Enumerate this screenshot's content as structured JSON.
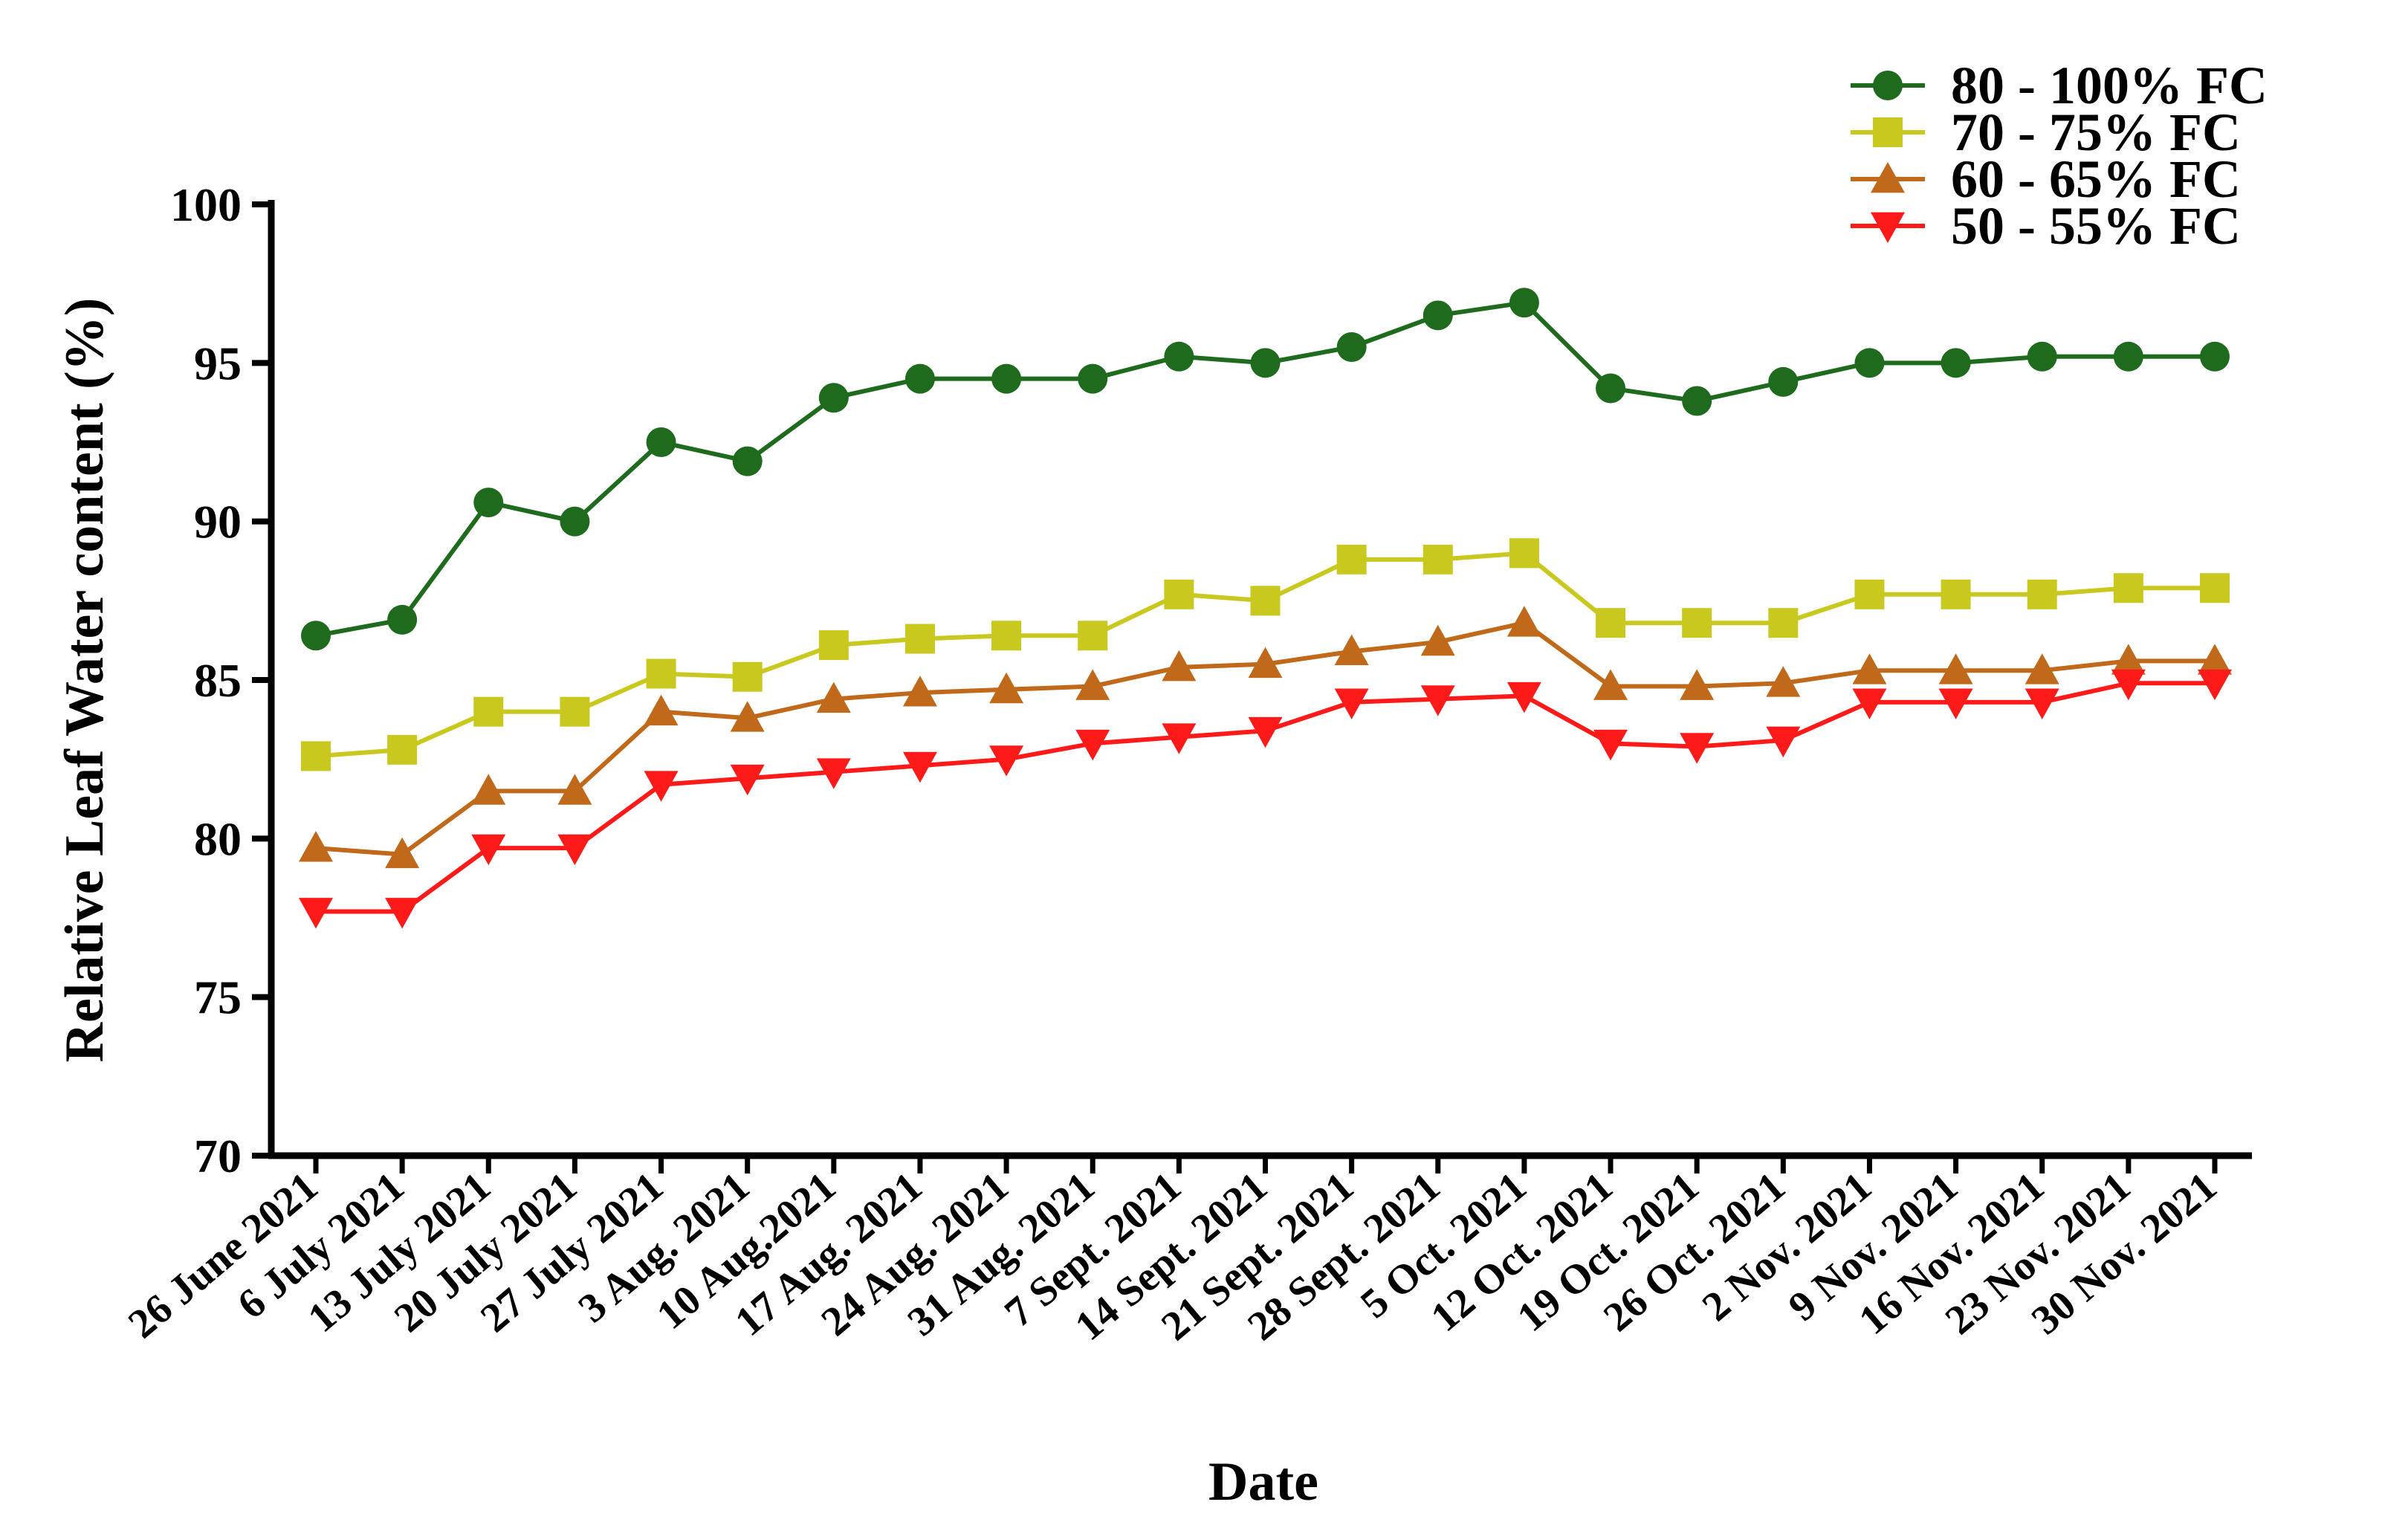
{
  "chart_data": {
    "type": "line",
    "title": "",
    "xlabel": "Date",
    "ylabel": "Relative Leaf Water content (%)",
    "ylim": [
      70,
      100
    ],
    "yticks": [
      70,
      75,
      80,
      85,
      90,
      95,
      100
    ],
    "grid": false,
    "legend_position": "top-right",
    "categories": [
      "26 June 2021",
      "6 July 2021",
      "13 July 2021",
      "20 July 2021",
      "27 July 2021",
      "3 Aug. 2021",
      "10 Aug.2021",
      "17 Aug. 2021",
      "24 Aug. 2021",
      "31 Aug. 2021",
      "7 Sept. 2021",
      "14 Sept. 2021",
      "21 Sept. 2021",
      "28 Sept. 2021",
      "5 Oct. 2021",
      "12 Oct. 2021",
      "19 Oct. 2021",
      "26 Oct. 2021",
      "2 Nov. 2021",
      "9 Nov. 2021",
      "16 Nov. 2021",
      "23 Nov. 2021",
      "30 Nov. 2021"
    ],
    "series": [
      {
        "name": "80 - 100% FC",
        "color": "#1e6b1e",
        "marker": "circle",
        "values": [
          86.4,
          86.9,
          90.6,
          90.0,
          92.5,
          91.9,
          93.9,
          94.5,
          94.5,
          94.5,
          95.2,
          95.0,
          95.5,
          96.5,
          96.9,
          94.2,
          93.8,
          94.4,
          95.0,
          95.0,
          95.2,
          95.2,
          95.2
        ]
      },
      {
        "name": "70 - 75% FC",
        "color": "#c8c81e",
        "marker": "square",
        "values": [
          82.6,
          82.8,
          84.0,
          84.0,
          85.2,
          85.1,
          86.1,
          86.3,
          86.4,
          86.4,
          87.7,
          87.5,
          88.8,
          88.8,
          89.0,
          86.8,
          86.8,
          86.8,
          87.7,
          87.7,
          87.7,
          87.9,
          87.9
        ]
      },
      {
        "name": "60 - 65% FC",
        "color": "#c0691a",
        "marker": "triangle-up",
        "values": [
          79.7,
          79.5,
          81.5,
          81.5,
          84.0,
          83.8,
          84.4,
          84.6,
          84.7,
          84.8,
          85.4,
          85.5,
          85.9,
          86.2,
          86.8,
          84.8,
          84.8,
          84.9,
          85.3,
          85.3,
          85.3,
          85.6,
          85.6
        ]
      },
      {
        "name": "50 - 55% FC",
        "color": "#ff1a1a",
        "marker": "triangle-down",
        "values": [
          77.7,
          77.7,
          79.7,
          79.7,
          81.7,
          81.9,
          82.1,
          82.3,
          82.5,
          83.0,
          83.2,
          83.4,
          84.3,
          84.4,
          84.5,
          83.0,
          82.9,
          83.1,
          84.3,
          84.3,
          84.3,
          84.9,
          84.9
        ]
      }
    ]
  }
}
